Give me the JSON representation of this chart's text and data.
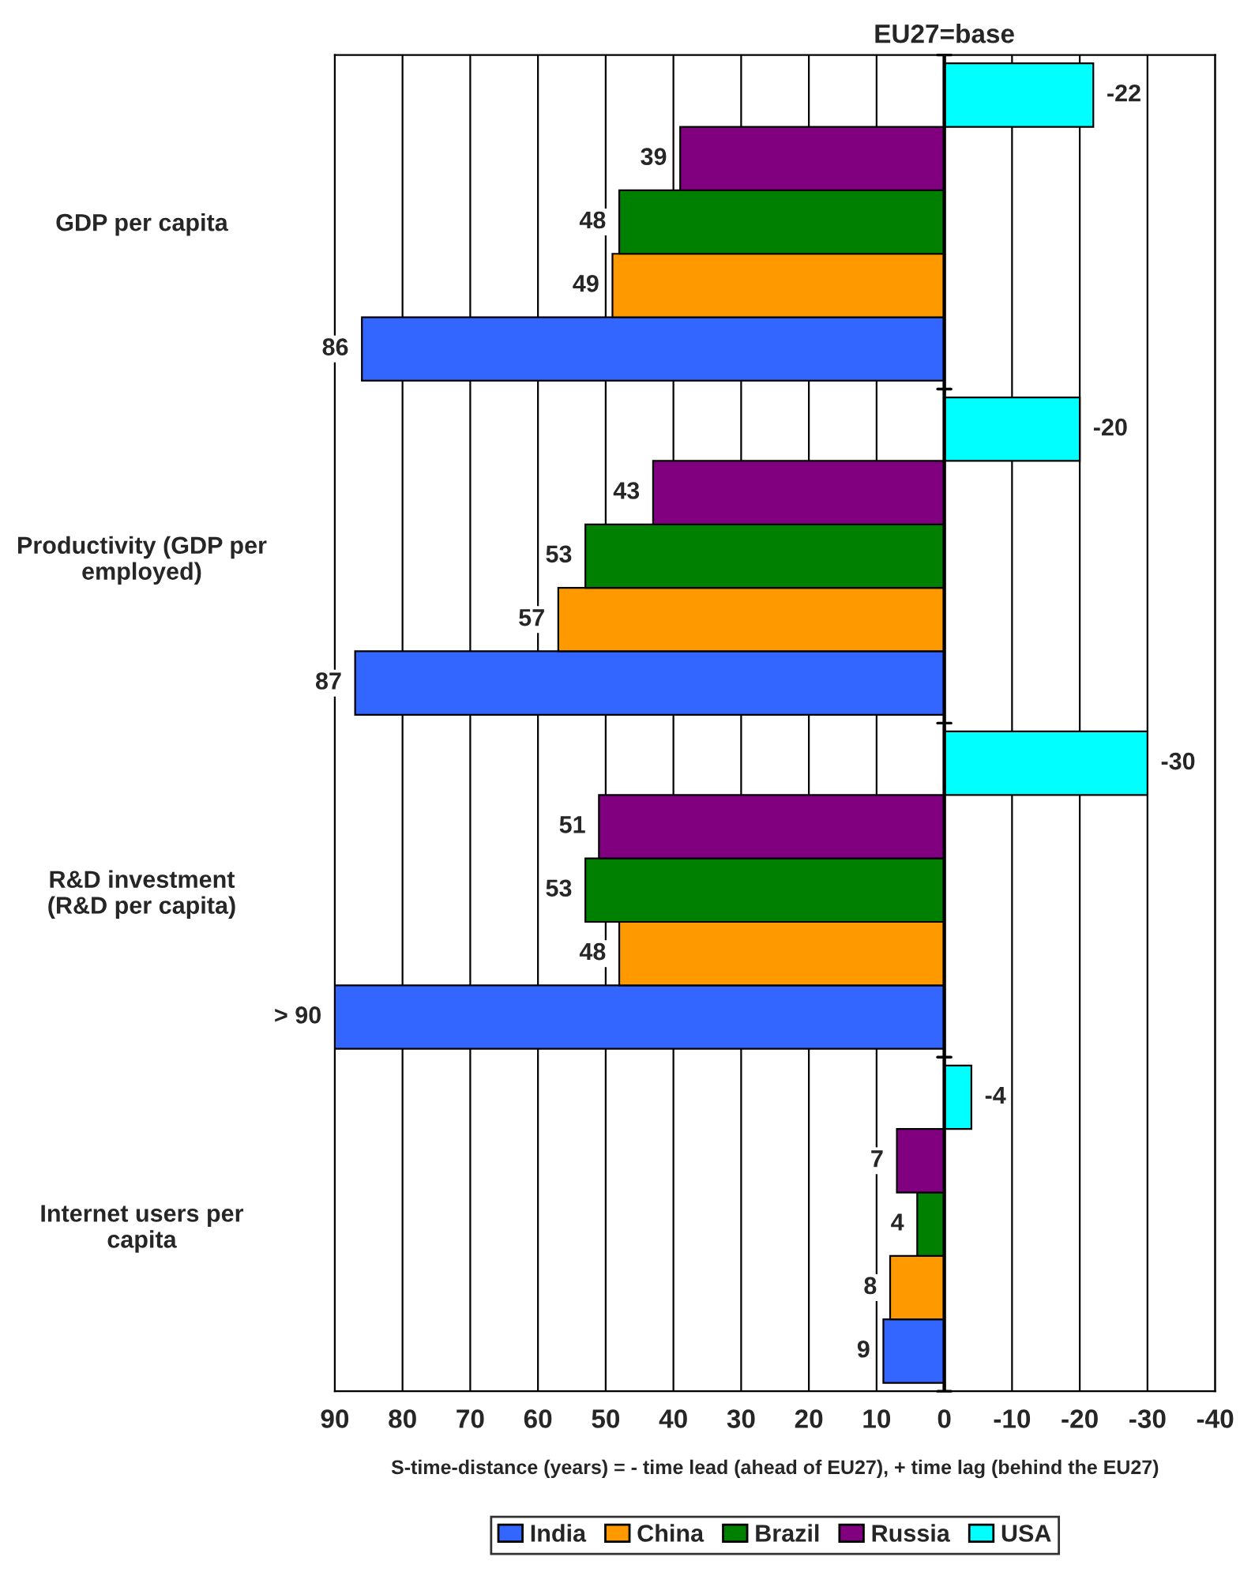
{
  "chart_data": {
    "type": "bar",
    "orientation": "horizontal",
    "categories": [
      "GDP per capita",
      "Productivity (GDP per\nemployed)",
      "R&D investment\n(R&D per capita)",
      "Internet users per\ncapita"
    ],
    "series": [
      {
        "name": "India",
        "color": "#3366ff",
        "values": [
          86,
          87,
          90,
          9
        ],
        "value_labels": [
          "86",
          "87",
          "> 90",
          "9"
        ]
      },
      {
        "name": "China",
        "color": "#ff9900",
        "values": [
          49,
          57,
          48,
          8
        ],
        "value_labels": [
          "49",
          "57",
          "48",
          "8"
        ]
      },
      {
        "name": "Brazil",
        "color": "#008000",
        "values": [
          48,
          53,
          53,
          4
        ],
        "value_labels": [
          "48",
          "53",
          "53",
          "4"
        ]
      },
      {
        "name": "Russia",
        "color": "#800080",
        "values": [
          39,
          43,
          51,
          7
        ],
        "value_labels": [
          "39",
          "43",
          "51",
          "7"
        ]
      },
      {
        "name": "USA",
        "color": "#00ffff",
        "values": [
          -22,
          -20,
          -30,
          -4
        ],
        "value_labels": [
          "-22",
          "-20",
          "-30",
          "-4"
        ]
      }
    ],
    "xlabel": "S-time-distance (years) = - time lead (ahead of EU27), + time lag (behind the EU27)",
    "xlim": [
      90,
      -40
    ],
    "xticks": [
      90,
      80,
      70,
      60,
      50,
      40,
      30,
      20,
      10,
      0,
      -10,
      -20,
      -30,
      -40
    ],
    "ref_lines": [
      {
        "axis": "x",
        "value": 0,
        "label": "EU27=base",
        "color": "#000000"
      }
    ],
    "grid": "x",
    "legend": "bottom"
  }
}
